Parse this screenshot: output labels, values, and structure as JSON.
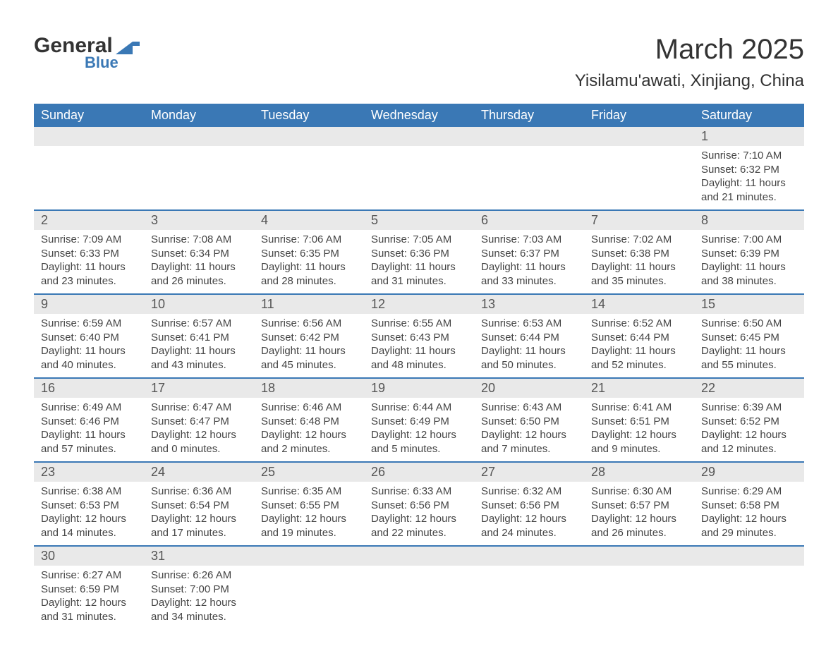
{
  "logo": {
    "general": "General",
    "blue": "Blue",
    "text_color": "#333333",
    "blue_color": "#3a78b5"
  },
  "title": "March 2025",
  "location": "Yisilamu'awati, Xinjiang, China",
  "colors": {
    "header_bg": "#3a78b5",
    "header_text": "#ffffff",
    "daynum_bg": "#e9e9e9",
    "daynum_text": "#555555",
    "body_text": "#444444",
    "row_border": "#3a78b5"
  },
  "day_names": [
    "Sunday",
    "Monday",
    "Tuesday",
    "Wednesday",
    "Thursday",
    "Friday",
    "Saturday"
  ],
  "weeks": [
    [
      null,
      null,
      null,
      null,
      null,
      null,
      {
        "n": "1",
        "sr": "Sunrise: 7:10 AM",
        "ss": "Sunset: 6:32 PM",
        "d1": "Daylight: 11 hours",
        "d2": "and 21 minutes."
      }
    ],
    [
      {
        "n": "2",
        "sr": "Sunrise: 7:09 AM",
        "ss": "Sunset: 6:33 PM",
        "d1": "Daylight: 11 hours",
        "d2": "and 23 minutes."
      },
      {
        "n": "3",
        "sr": "Sunrise: 7:08 AM",
        "ss": "Sunset: 6:34 PM",
        "d1": "Daylight: 11 hours",
        "d2": "and 26 minutes."
      },
      {
        "n": "4",
        "sr": "Sunrise: 7:06 AM",
        "ss": "Sunset: 6:35 PM",
        "d1": "Daylight: 11 hours",
        "d2": "and 28 minutes."
      },
      {
        "n": "5",
        "sr": "Sunrise: 7:05 AM",
        "ss": "Sunset: 6:36 PM",
        "d1": "Daylight: 11 hours",
        "d2": "and 31 minutes."
      },
      {
        "n": "6",
        "sr": "Sunrise: 7:03 AM",
        "ss": "Sunset: 6:37 PM",
        "d1": "Daylight: 11 hours",
        "d2": "and 33 minutes."
      },
      {
        "n": "7",
        "sr": "Sunrise: 7:02 AM",
        "ss": "Sunset: 6:38 PM",
        "d1": "Daylight: 11 hours",
        "d2": "and 35 minutes."
      },
      {
        "n": "8",
        "sr": "Sunrise: 7:00 AM",
        "ss": "Sunset: 6:39 PM",
        "d1": "Daylight: 11 hours",
        "d2": "and 38 minutes."
      }
    ],
    [
      {
        "n": "9",
        "sr": "Sunrise: 6:59 AM",
        "ss": "Sunset: 6:40 PM",
        "d1": "Daylight: 11 hours",
        "d2": "and 40 minutes."
      },
      {
        "n": "10",
        "sr": "Sunrise: 6:57 AM",
        "ss": "Sunset: 6:41 PM",
        "d1": "Daylight: 11 hours",
        "d2": "and 43 minutes."
      },
      {
        "n": "11",
        "sr": "Sunrise: 6:56 AM",
        "ss": "Sunset: 6:42 PM",
        "d1": "Daylight: 11 hours",
        "d2": "and 45 minutes."
      },
      {
        "n": "12",
        "sr": "Sunrise: 6:55 AM",
        "ss": "Sunset: 6:43 PM",
        "d1": "Daylight: 11 hours",
        "d2": "and 48 minutes."
      },
      {
        "n": "13",
        "sr": "Sunrise: 6:53 AM",
        "ss": "Sunset: 6:44 PM",
        "d1": "Daylight: 11 hours",
        "d2": "and 50 minutes."
      },
      {
        "n": "14",
        "sr": "Sunrise: 6:52 AM",
        "ss": "Sunset: 6:44 PM",
        "d1": "Daylight: 11 hours",
        "d2": "and 52 minutes."
      },
      {
        "n": "15",
        "sr": "Sunrise: 6:50 AM",
        "ss": "Sunset: 6:45 PM",
        "d1": "Daylight: 11 hours",
        "d2": "and 55 minutes."
      }
    ],
    [
      {
        "n": "16",
        "sr": "Sunrise: 6:49 AM",
        "ss": "Sunset: 6:46 PM",
        "d1": "Daylight: 11 hours",
        "d2": "and 57 minutes."
      },
      {
        "n": "17",
        "sr": "Sunrise: 6:47 AM",
        "ss": "Sunset: 6:47 PM",
        "d1": "Daylight: 12 hours",
        "d2": "and 0 minutes."
      },
      {
        "n": "18",
        "sr": "Sunrise: 6:46 AM",
        "ss": "Sunset: 6:48 PM",
        "d1": "Daylight: 12 hours",
        "d2": "and 2 minutes."
      },
      {
        "n": "19",
        "sr": "Sunrise: 6:44 AM",
        "ss": "Sunset: 6:49 PM",
        "d1": "Daylight: 12 hours",
        "d2": "and 5 minutes."
      },
      {
        "n": "20",
        "sr": "Sunrise: 6:43 AM",
        "ss": "Sunset: 6:50 PM",
        "d1": "Daylight: 12 hours",
        "d2": "and 7 minutes."
      },
      {
        "n": "21",
        "sr": "Sunrise: 6:41 AM",
        "ss": "Sunset: 6:51 PM",
        "d1": "Daylight: 12 hours",
        "d2": "and 9 minutes."
      },
      {
        "n": "22",
        "sr": "Sunrise: 6:39 AM",
        "ss": "Sunset: 6:52 PM",
        "d1": "Daylight: 12 hours",
        "d2": "and 12 minutes."
      }
    ],
    [
      {
        "n": "23",
        "sr": "Sunrise: 6:38 AM",
        "ss": "Sunset: 6:53 PM",
        "d1": "Daylight: 12 hours",
        "d2": "and 14 minutes."
      },
      {
        "n": "24",
        "sr": "Sunrise: 6:36 AM",
        "ss": "Sunset: 6:54 PM",
        "d1": "Daylight: 12 hours",
        "d2": "and 17 minutes."
      },
      {
        "n": "25",
        "sr": "Sunrise: 6:35 AM",
        "ss": "Sunset: 6:55 PM",
        "d1": "Daylight: 12 hours",
        "d2": "and 19 minutes."
      },
      {
        "n": "26",
        "sr": "Sunrise: 6:33 AM",
        "ss": "Sunset: 6:56 PM",
        "d1": "Daylight: 12 hours",
        "d2": "and 22 minutes."
      },
      {
        "n": "27",
        "sr": "Sunrise: 6:32 AM",
        "ss": "Sunset: 6:56 PM",
        "d1": "Daylight: 12 hours",
        "d2": "and 24 minutes."
      },
      {
        "n": "28",
        "sr": "Sunrise: 6:30 AM",
        "ss": "Sunset: 6:57 PM",
        "d1": "Daylight: 12 hours",
        "d2": "and 26 minutes."
      },
      {
        "n": "29",
        "sr": "Sunrise: 6:29 AM",
        "ss": "Sunset: 6:58 PM",
        "d1": "Daylight: 12 hours",
        "d2": "and 29 minutes."
      }
    ],
    [
      {
        "n": "30",
        "sr": "Sunrise: 6:27 AM",
        "ss": "Sunset: 6:59 PM",
        "d1": "Daylight: 12 hours",
        "d2": "and 31 minutes."
      },
      {
        "n": "31",
        "sr": "Sunrise: 6:26 AM",
        "ss": "Sunset: 7:00 PM",
        "d1": "Daylight: 12 hours",
        "d2": "and 34 minutes."
      },
      null,
      null,
      null,
      null,
      null
    ]
  ]
}
